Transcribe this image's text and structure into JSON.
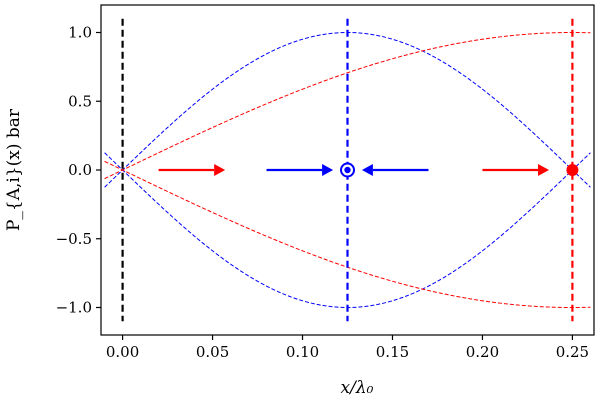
{
  "chart_data": {
    "type": "line",
    "xlabel": "x/λ₀",
    "ylabel": "P_{A,i}(x) bar",
    "xlim": [
      -0.012,
      0.262
    ],
    "ylim": [
      -1.2,
      1.2
    ],
    "xticks": [
      0.0,
      0.05,
      0.1,
      0.15,
      0.2,
      0.25
    ],
    "xtick_labels": [
      "0.00",
      "0.05",
      "0.10",
      "0.15",
      "0.20",
      "0.25"
    ],
    "yticks": [
      -1.0,
      -0.5,
      0.0,
      0.5,
      1.0
    ],
    "ytick_labels": [
      "−1.0",
      "−0.5",
      "0.0",
      "0.5",
      "1.0"
    ],
    "grid": false,
    "colors": {
      "red": "#ff0000",
      "blue": "#0000ff",
      "black": "#000000"
    },
    "series": [
      {
        "color": "#0000ff",
        "function": "sin(4*pi*x)",
        "x_range": [
          -0.01,
          0.26
        ],
        "style": "dashed-thin"
      },
      {
        "color": "#0000ff",
        "function": "-sin(4*pi*x)",
        "x_range": [
          -0.01,
          0.26
        ],
        "style": "dashed-thin"
      },
      {
        "color": "#ff0000",
        "function": "sin(2*pi*x)",
        "x_range": [
          -0.01,
          0.26
        ],
        "style": "dashed-thin"
      },
      {
        "color": "#ff0000",
        "function": "-sin(2*pi*x)",
        "x_range": [
          -0.01,
          0.26
        ],
        "style": "dashed-thin"
      }
    ],
    "vertical_lines": [
      {
        "x": 0.0,
        "color": "#000000"
      },
      {
        "x": 0.125,
        "color": "#0000ff"
      },
      {
        "x": 0.25,
        "color": "#ff0000"
      }
    ],
    "arrows": [
      {
        "from": [
          0.02,
          0.0
        ],
        "to": [
          0.057,
          0.0
        ],
        "color": "#ff0000"
      },
      {
        "from": [
          0.2,
          0.0
        ],
        "to": [
          0.237,
          0.0
        ],
        "color": "#ff0000"
      },
      {
        "from": [
          0.08,
          0.0
        ],
        "to": [
          0.117,
          0.0
        ],
        "color": "#0000ff"
      },
      {
        "from": [
          0.17,
          0.0
        ],
        "to": [
          0.133,
          0.0
        ],
        "color": "#0000ff"
      }
    ],
    "markers": [
      {
        "x": 0.125,
        "y": 0.0,
        "color": "#0000ff",
        "shape": "circle-in-ring"
      },
      {
        "x": 0.25,
        "y": 0.0,
        "color": "#ff0000",
        "shape": "filled-circle"
      }
    ]
  }
}
